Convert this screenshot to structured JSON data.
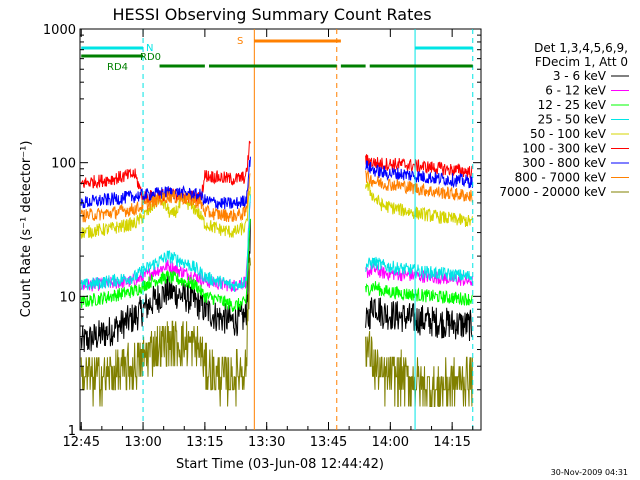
{
  "chart_data": {
    "type": "line",
    "title": "HESSI Observing Summary Count Rates",
    "xlabel": "Start Time (03-Jun-08 12:44:42)",
    "ylabel": "Count Rate (s⁻¹ detector⁻¹)",
    "yscale": "log",
    "ylim": [
      1,
      1000
    ],
    "xlim": [
      "12:44:42",
      "14:22:00"
    ],
    "x_ticks": [
      "12:45",
      "13:00",
      "13:15",
      "13:30",
      "13:45",
      "14:00",
      "14:15"
    ],
    "y_ticks": [
      "1",
      "10",
      "100",
      "1000"
    ],
    "legend_header": [
      "Det 1,3,4,5,6,9,",
      "FDecim 1, Att 0"
    ],
    "legend_position": "right",
    "footer_date": "30-Nov-2009 04:31",
    "flags": [
      {
        "label": "N",
        "color": "#00e5e5",
        "segments": [
          [
            "12:45",
            "13:00"
          ],
          [
            "14:06",
            "14:20"
          ]
        ]
      },
      {
        "label": "RD0",
        "color": "#007f00",
        "segments": [
          [
            "12:45",
            "13:00"
          ]
        ]
      },
      {
        "label": "RD4",
        "color": "#007f00",
        "segments": [
          [
            "13:04",
            "13:15"
          ],
          [
            "13:16",
            "13:47"
          ],
          [
            "13:48",
            "13:54"
          ],
          [
            "13:55",
            "14:20"
          ]
        ]
      },
      {
        "label": "S",
        "color": "#ff8000",
        "segments": [
          [
            "13:27",
            "13:48"
          ]
        ]
      }
    ],
    "vlines": [
      {
        "x": "13:00",
        "color": "#00e5e5",
        "style": "dashed"
      },
      {
        "x": "13:27",
        "color": "#ff8000",
        "style": "solid"
      },
      {
        "x": "13:47",
        "color": "#ff8000",
        "style": "dashed"
      },
      {
        "x": "14:06",
        "color": "#00e5e5",
        "style": "solid"
      },
      {
        "x": "14:20",
        "color": "#00e5e5",
        "style": "dashed"
      }
    ],
    "gaps": [
      [
        "13:26",
        "13:54"
      ]
    ],
    "series": [
      {
        "name": "3 - 6 keV",
        "color": "#000000",
        "points": [
          [
            "12:45",
            4.5
          ],
          [
            "12:52",
            5.5
          ],
          [
            "12:58",
            7
          ],
          [
            "13:02",
            9
          ],
          [
            "13:06",
            11
          ],
          [
            "13:10",
            10
          ],
          [
            "13:13",
            9
          ],
          [
            "13:15",
            8
          ],
          [
            "13:18",
            7
          ],
          [
            "13:22",
            6.5
          ],
          [
            "13:25",
            7
          ],
          [
            "13:26",
            30
          ],
          [
            "13:54",
            6
          ],
          [
            "13:56",
            9
          ],
          [
            "13:58",
            7.5
          ],
          [
            "14:03",
            7
          ],
          [
            "14:10",
            6.5
          ],
          [
            "14:20",
            6
          ]
        ]
      },
      {
        "name": "6 - 12 keV",
        "color": "#ff00ff",
        "points": [
          [
            "12:45",
            12
          ],
          [
            "12:52",
            12.5
          ],
          [
            "12:58",
            13
          ],
          [
            "13:02",
            15
          ],
          [
            "13:06",
            17
          ],
          [
            "13:10",
            15
          ],
          [
            "13:13",
            14
          ],
          [
            "13:15",
            13
          ],
          [
            "13:18",
            12.5
          ],
          [
            "13:22",
            12
          ],
          [
            "13:25",
            13
          ],
          [
            "13:26",
            50
          ],
          [
            "13:54",
            15
          ],
          [
            "13:56",
            16
          ],
          [
            "13:58",
            15
          ],
          [
            "14:03",
            14.5
          ],
          [
            "14:10",
            14
          ],
          [
            "14:20",
            13
          ]
        ]
      },
      {
        "name": "12 - 25 keV",
        "color": "#00ff00",
        "points": [
          [
            "12:45",
            9
          ],
          [
            "12:52",
            10
          ],
          [
            "12:58",
            11
          ],
          [
            "13:02",
            13
          ],
          [
            "13:06",
            14
          ],
          [
            "13:10",
            13
          ],
          [
            "13:13",
            12
          ],
          [
            "13:15",
            10
          ],
          [
            "13:18",
            9.5
          ],
          [
            "13:22",
            8.5
          ],
          [
            "13:25",
            9
          ],
          [
            "13:26",
            40
          ],
          [
            "13:54",
            11
          ],
          [
            "13:56",
            12
          ],
          [
            "13:58",
            11
          ],
          [
            "14:03",
            10.5
          ],
          [
            "14:10",
            10
          ],
          [
            "14:20",
            9.5
          ]
        ]
      },
      {
        "name": "25 - 50 keV",
        "color": "#00e5e5",
        "points": [
          [
            "12:45",
            12
          ],
          [
            "12:52",
            13
          ],
          [
            "12:58",
            14
          ],
          [
            "13:02",
            17
          ],
          [
            "13:06",
            20
          ],
          [
            "13:10",
            18
          ],
          [
            "13:13",
            16
          ],
          [
            "13:15",
            14
          ],
          [
            "13:18",
            13
          ],
          [
            "13:22",
            12
          ],
          [
            "13:25",
            13
          ],
          [
            "13:26",
            55
          ],
          [
            "13:54",
            17
          ],
          [
            "13:56",
            18
          ],
          [
            "13:58",
            17
          ],
          [
            "14:03",
            16
          ],
          [
            "14:10",
            15
          ],
          [
            "14:20",
            14
          ]
        ]
      },
      {
        "name": "50 - 100 keV",
        "color": "#d4d400",
        "points": [
          [
            "12:45",
            30
          ],
          [
            "12:52",
            32
          ],
          [
            "12:58",
            35
          ],
          [
            "13:01",
            42
          ],
          [
            "13:04",
            55
          ],
          [
            "13:07",
            40
          ],
          [
            "13:10",
            52
          ],
          [
            "13:13",
            44
          ],
          [
            "13:15",
            35
          ],
          [
            "13:18",
            32
          ],
          [
            "13:22",
            30
          ],
          [
            "13:25",
            33
          ],
          [
            "13:26",
            65
          ],
          [
            "13:54",
            70
          ],
          [
            "13:56",
            55
          ],
          [
            "13:58",
            48
          ],
          [
            "14:03",
            44
          ],
          [
            "14:10",
            40
          ],
          [
            "14:20",
            36
          ]
        ]
      },
      {
        "name": "100 - 300 keV",
        "color": "#ff0000",
        "points": [
          [
            "12:45",
            70
          ],
          [
            "12:52",
            75
          ],
          [
            "12:58",
            82
          ],
          [
            "13:00",
            55
          ],
          [
            "13:06",
            58
          ],
          [
            "13:10",
            57
          ],
          [
            "13:14",
            54
          ],
          [
            "13:15",
            80
          ],
          [
            "13:18",
            78
          ],
          [
            "13:22",
            75
          ],
          [
            "13:25",
            78
          ],
          [
            "13:26",
            150
          ],
          [
            "13:54",
            105
          ],
          [
            "13:56",
            100
          ],
          [
            "13:58",
            98
          ],
          [
            "14:03",
            97
          ],
          [
            "14:10",
            92
          ],
          [
            "14:20",
            85
          ]
        ]
      },
      {
        "name": "300 - 800 keV",
        "color": "#0000ff",
        "points": [
          [
            "12:45",
            50
          ],
          [
            "12:52",
            53
          ],
          [
            "12:58",
            56
          ],
          [
            "13:02",
            58
          ],
          [
            "13:06",
            60
          ],
          [
            "13:10",
            59
          ],
          [
            "13:14",
            57
          ],
          [
            "13:15",
            52
          ],
          [
            "13:18",
            50
          ],
          [
            "13:22",
            49
          ],
          [
            "13:25",
            52
          ],
          [
            "13:26",
            110
          ],
          [
            "13:54",
            95
          ],
          [
            "13:56",
            88
          ],
          [
            "13:58",
            84
          ],
          [
            "14:03",
            82
          ],
          [
            "14:10",
            77
          ],
          [
            "14:20",
            72
          ]
        ]
      },
      {
        "name": "800 - 7000 keV",
        "color": "#ff8000",
        "points": [
          [
            "12:45",
            40
          ],
          [
            "12:52",
            42
          ],
          [
            "12:58",
            45
          ],
          [
            "13:02",
            50
          ],
          [
            "13:06",
            56
          ],
          [
            "13:10",
            54
          ],
          [
            "13:14",
            50
          ],
          [
            "13:15",
            43
          ],
          [
            "13:18",
            41
          ],
          [
            "13:22",
            40
          ],
          [
            "13:25",
            42
          ],
          [
            "13:26",
            90
          ],
          [
            "13:54",
            80
          ],
          [
            "13:56",
            73
          ],
          [
            "13:58",
            70
          ],
          [
            "14:03",
            67
          ],
          [
            "14:10",
            61
          ],
          [
            "14:20",
            56
          ]
        ]
      },
      {
        "name": "7000 - 20000 keV",
        "color": "#808000",
        "points": [
          [
            "12:45",
            2.5
          ],
          [
            "12:52",
            2.5
          ],
          [
            "12:58",
            3
          ],
          [
            "13:02",
            4
          ],
          [
            "13:06",
            4.5
          ],
          [
            "13:10",
            4.5
          ],
          [
            "13:14",
            4
          ],
          [
            "13:15",
            3
          ],
          [
            "13:18",
            2.5
          ],
          [
            "13:22",
            2.5
          ],
          [
            "13:25",
            3
          ],
          [
            "13:26",
            20
          ],
          [
            "13:54",
            4.5
          ],
          [
            "13:56",
            3
          ],
          [
            "13:58",
            2.5
          ],
          [
            "14:03",
            2.5
          ],
          [
            "14:10",
            2
          ],
          [
            "14:20",
            2.5
          ]
        ]
      }
    ]
  }
}
